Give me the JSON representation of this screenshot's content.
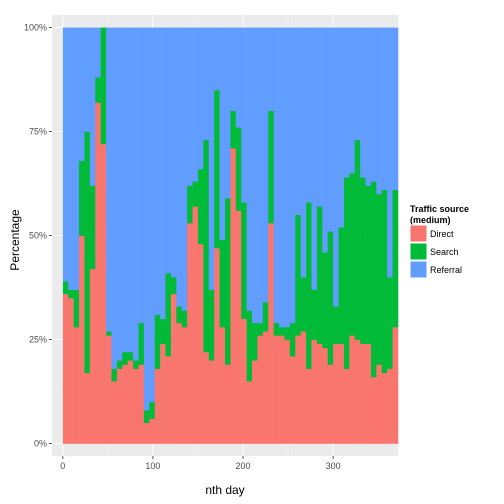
{
  "chart_data": {
    "type": "bar",
    "stacked": "percent",
    "xlabel": "nth day",
    "ylabel": "Percentage",
    "xlim": [
      -12,
      372
    ],
    "ylim": [
      -0.03,
      1.03
    ],
    "x_ticks": [
      0,
      100,
      200,
      300
    ],
    "y_ticks": [
      0,
      0.25,
      0.5,
      0.75,
      1.0
    ],
    "y_tick_labels": [
      "0%",
      "25%",
      "50%",
      "75%",
      "100%"
    ],
    "bin_width": 6,
    "grid": true,
    "legend": {
      "title": "Traffic source\n(medium)",
      "position": "right",
      "entries": [
        {
          "name": "Direct",
          "color": "#F8766D"
        },
        {
          "name": "Search",
          "color": "#00BA38"
        },
        {
          "name": "Referral",
          "color": "#619CFF"
        }
      ]
    },
    "x": [
      0,
      6,
      12,
      18,
      24,
      30,
      36,
      42,
      48,
      54,
      60,
      66,
      72,
      78,
      84,
      90,
      96,
      102,
      108,
      114,
      120,
      126,
      132,
      138,
      144,
      150,
      156,
      162,
      168,
      174,
      180,
      186,
      192,
      198,
      204,
      210,
      216,
      222,
      228,
      234,
      240,
      246,
      252,
      258,
      264,
      270,
      276,
      282,
      288,
      294,
      300,
      306,
      312,
      318,
      324,
      330,
      336,
      342,
      348,
      354,
      360,
      366
    ],
    "series": [
      {
        "name": "Direct",
        "values": [
          0.36,
          0.35,
          0.28,
          0.5,
          0.17,
          0.42,
          0.82,
          0.72,
          0.26,
          0.15,
          0.18,
          0.19,
          0.2,
          0.18,
          0.19,
          0.05,
          0.06,
          0.18,
          0.24,
          0.21,
          0.36,
          0.29,
          0.28,
          0.53,
          0.57,
          0.48,
          0.22,
          0.2,
          0.47,
          0.28,
          0.19,
          0.71,
          0.56,
          0.3,
          0.15,
          0.2,
          0.26,
          0.27,
          0.53,
          0.26,
          0.26,
          0.25,
          0.21,
          0.26,
          0.27,
          0.18,
          0.25,
          0.24,
          0.23,
          0.19,
          0.24,
          0.24,
          0.18,
          0.26,
          0.25,
          0.24,
          0.24,
          0.16,
          0.19,
          0.17,
          0.18,
          0.28
        ]
      },
      {
        "name": "Search",
        "values": [
          0.03,
          0.02,
          0.09,
          0.18,
          0.58,
          0.2,
          0.06,
          0.28,
          0.01,
          0.03,
          0.02,
          0.03,
          0.02,
          0.02,
          0.1,
          0.03,
          0.04,
          0.13,
          0.06,
          0.2,
          0.04,
          0.04,
          0.04,
          0.09,
          0.06,
          0.18,
          0.51,
          0.17,
          0.38,
          0.21,
          0.4,
          0.09,
          0.2,
          0.28,
          0.17,
          0.09,
          0.03,
          0.07,
          0.27,
          0.03,
          0.02,
          0.03,
          0.08,
          0.29,
          0.13,
          0.4,
          0.12,
          0.33,
          0.23,
          0.32,
          0.09,
          0.28,
          0.46,
          0.39,
          0.48,
          0.4,
          0.38,
          0.47,
          0.41,
          0.44,
          0.22,
          0.33
        ]
      },
      {
        "name": "Referral",
        "values": [
          0.61,
          0.63,
          0.63,
          0.32,
          0.25,
          0.38,
          0.12,
          0.0,
          0.73,
          0.82,
          0.8,
          0.78,
          0.78,
          0.8,
          0.71,
          0.92,
          0.9,
          0.69,
          0.7,
          0.59,
          0.6,
          0.67,
          0.68,
          0.38,
          0.37,
          0.34,
          0.27,
          0.63,
          0.15,
          0.51,
          0.41,
          0.2,
          0.24,
          0.42,
          0.68,
          0.71,
          0.71,
          0.66,
          0.2,
          0.71,
          0.72,
          0.72,
          0.71,
          0.45,
          0.6,
          0.42,
          0.63,
          0.43,
          0.54,
          0.49,
          0.67,
          0.48,
          0.36,
          0.35,
          0.27,
          0.36,
          0.38,
          0.37,
          0.4,
          0.39,
          0.6,
          0.39
        ]
      }
    ]
  }
}
